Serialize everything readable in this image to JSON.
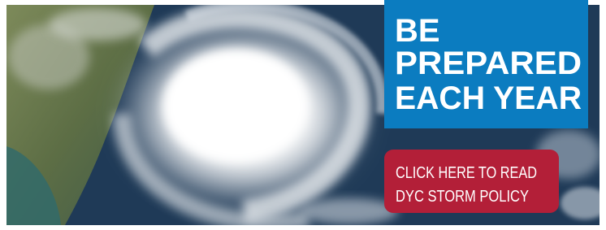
{
  "banner": {
    "headline": [
      "BE",
      "PREPARED",
      "EACH YEAR"
    ],
    "button": [
      "CLICK HERE TO READ",
      "DYC STORM POLICY"
    ]
  }
}
